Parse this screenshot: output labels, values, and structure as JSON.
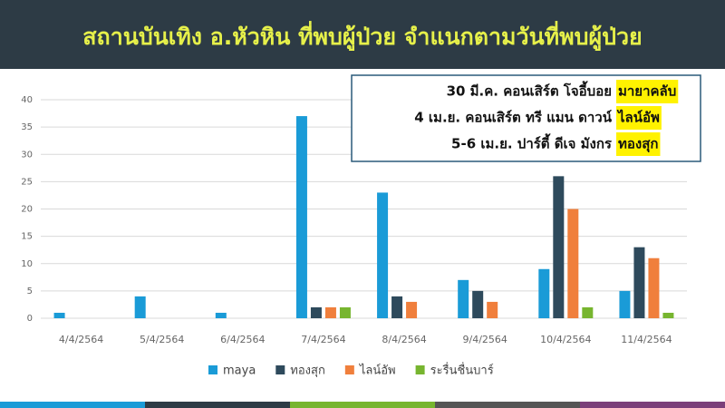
{
  "chart_data": {
    "type": "bar",
    "title": "สถานบันเทิง อ.หัวหิน ที่พบผู้ป่วย จำแนกตามวันที่พบผู้ป่วย",
    "categories": [
      "4/4/2564",
      "5/4/2564",
      "6/4/2564",
      "7/4/2564",
      "8/4/2564",
      "9/4/2564",
      "10/4/2564",
      "11/4/2564"
    ],
    "series": [
      {
        "name": "maya",
        "color": "#1a9bd7",
        "values": [
          1,
          4,
          1,
          37,
          23,
          7,
          9,
          5
        ]
      },
      {
        "name": "ทองสุก",
        "color": "#2e4a5c",
        "values": [
          0,
          0,
          0,
          2,
          4,
          5,
          26,
          13
        ]
      },
      {
        "name": "ไลน์อัพ",
        "color": "#f07f3c",
        "values": [
          0,
          0,
          0,
          2,
          3,
          3,
          20,
          11
        ]
      },
      {
        "name": "ระรื่นชื่นบาร์",
        "color": "#77b52f",
        "values": [
          0,
          0,
          0,
          2,
          0,
          0,
          2,
          1
        ]
      }
    ],
    "ylim": [
      0,
      40
    ],
    "yticks": [
      0,
      5,
      10,
      15,
      20,
      25,
      30,
      35,
      40
    ],
    "grid": true,
    "legend": "bottom",
    "annotations": [
      {
        "text": "30 มี.ค. คอนเสิร์ต โจอี้บอย",
        "highlight": "มายาคลับ"
      },
      {
        "text": "4 เม.ย. คอนเสิร์ต ทรี แมน ดาวน์",
        "highlight": "ไลน์อัพ"
      },
      {
        "text": "5-6 เม.ย. ปาร์ตี้ ดีเจ มังกร",
        "highlight": "ทองสุก"
      }
    ]
  }
}
